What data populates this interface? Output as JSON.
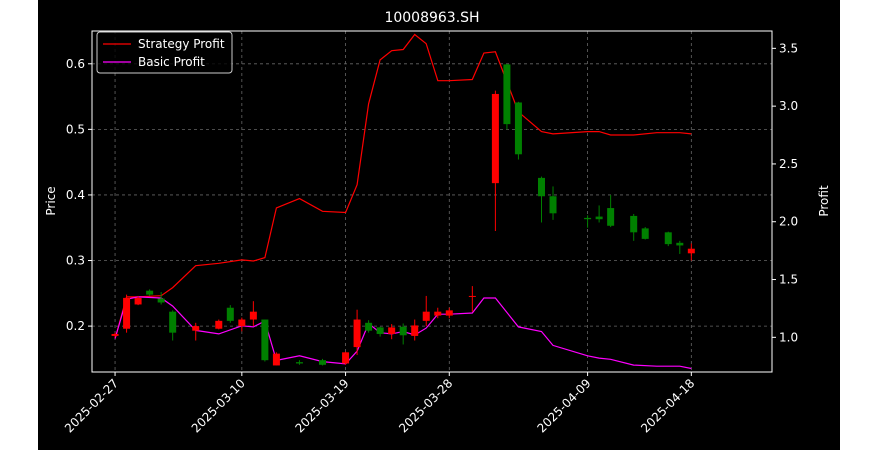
{
  "chart_data": {
    "type": "candlestick",
    "title": "10008963.SH",
    "ylabel_left": "Price",
    "ylabel_right": "Profit",
    "ylim_left": [
      0.13,
      0.65
    ],
    "ylim_right": [
      0.7,
      3.65
    ],
    "xlim": [
      "2025-02-25",
      "2025-04-25"
    ],
    "grid": true,
    "legend_position": "top-left",
    "x_ticks": [
      "2025-02-27",
      "2025-03-10",
      "2025-03-19",
      "2025-03-28",
      "2025-04-09",
      "2025-04-18"
    ],
    "y_ticks_left": [
      "0.2",
      "0.3",
      "0.4",
      "0.5",
      "0.6"
    ],
    "y_ticks_right": [
      "1.0",
      "1.5",
      "2.0",
      "2.5",
      "3.0",
      "3.5"
    ],
    "colors": {
      "background": "#000000",
      "up": "#ff0000",
      "down": "#008000",
      "strategy_line": "#ff0000",
      "basic_line": "#ff00ff",
      "grid": "#666666",
      "text": "#ffffff"
    },
    "candles": [
      {
        "date": "2025-02-27",
        "open": 0.185,
        "close": 0.188,
        "high": 0.19,
        "low": 0.183
      },
      {
        "date": "2025-02-28",
        "open": 0.196,
        "close": 0.243,
        "high": 0.248,
        "low": 0.19
      },
      {
        "date": "2025-03-01",
        "open": 0.233,
        "close": 0.243,
        "high": 0.246,
        "low": 0.232
      },
      {
        "date": "2025-03-02",
        "open": 0.254,
        "close": 0.248,
        "high": 0.256,
        "low": 0.246
      },
      {
        "date": "2025-03-03",
        "open": 0.242,
        "close": 0.236,
        "high": 0.252,
        "low": 0.233
      },
      {
        "date": "2025-03-04",
        "open": 0.222,
        "close": 0.19,
        "high": 0.224,
        "low": 0.178
      },
      {
        "date": "2025-03-06",
        "open": 0.193,
        "close": 0.2,
        "high": 0.205,
        "low": 0.178
      },
      {
        "date": "2025-03-08",
        "open": 0.196,
        "close": 0.208,
        "high": 0.21,
        "low": 0.195
      },
      {
        "date": "2025-03-09",
        "open": 0.228,
        "close": 0.208,
        "high": 0.232,
        "low": 0.205
      },
      {
        "date": "2025-03-10",
        "open": 0.2,
        "close": 0.21,
        "high": 0.213,
        "low": 0.192
      },
      {
        "date": "2025-03-11",
        "open": 0.21,
        "close": 0.222,
        "high": 0.238,
        "low": 0.2
      },
      {
        "date": "2025-03-12",
        "open": 0.21,
        "close": 0.148,
        "high": 0.21,
        "low": 0.146
      },
      {
        "date": "2025-03-13",
        "open": 0.14,
        "close": 0.158,
        "high": 0.16,
        "low": 0.14
      },
      {
        "date": "2025-03-15",
        "open": 0.145,
        "close": 0.143,
        "high": 0.148,
        "low": 0.141
      },
      {
        "date": "2025-03-17",
        "open": 0.148,
        "close": 0.141,
        "high": 0.15,
        "low": 0.14
      },
      {
        "date": "2025-03-19",
        "open": 0.143,
        "close": 0.16,
        "high": 0.161,
        "low": 0.141
      },
      {
        "date": "2025-03-20",
        "open": 0.168,
        "close": 0.21,
        "high": 0.225,
        "low": 0.156
      },
      {
        "date": "2025-03-21",
        "open": 0.205,
        "close": 0.193,
        "high": 0.209,
        "low": 0.19
      },
      {
        "date": "2025-03-22",
        "open": 0.198,
        "close": 0.188,
        "high": 0.199,
        "low": 0.184
      },
      {
        "date": "2025-03-23",
        "open": 0.188,
        "close": 0.198,
        "high": 0.203,
        "low": 0.18
      },
      {
        "date": "2025-03-24",
        "open": 0.199,
        "close": 0.186,
        "high": 0.204,
        "low": 0.172
      },
      {
        "date": "2025-03-25",
        "open": 0.185,
        "close": 0.201,
        "high": 0.21,
        "low": 0.178
      },
      {
        "date": "2025-03-26",
        "open": 0.208,
        "close": 0.222,
        "high": 0.246,
        "low": 0.2
      },
      {
        "date": "2025-03-27",
        "open": 0.216,
        "close": 0.222,
        "high": 0.228,
        "low": 0.212
      },
      {
        "date": "2025-03-28",
        "open": 0.216,
        "close": 0.224,
        "high": 0.228,
        "low": 0.212
      },
      {
        "date": "2025-03-30",
        "open": 0.245,
        "close": 0.246,
        "high": 0.261,
        "low": 0.222
      },
      {
        "date": "2025-04-01",
        "open": 0.418,
        "close": 0.554,
        "high": 0.559,
        "low": 0.345
      },
      {
        "date": "2025-04-02",
        "open": 0.599,
        "close": 0.508,
        "high": 0.6,
        "low": 0.5
      },
      {
        "date": "2025-04-03",
        "open": 0.541,
        "close": 0.462,
        "high": 0.542,
        "low": 0.454
      },
      {
        "date": "2025-04-05",
        "open": 0.426,
        "close": 0.398,
        "high": 0.428,
        "low": 0.358
      },
      {
        "date": "2025-04-06",
        "open": 0.398,
        "close": 0.372,
        "high": 0.413,
        "low": 0.362
      },
      {
        "date": "2025-04-09",
        "open": 0.365,
        "close": 0.363,
        "high": 0.369,
        "low": 0.35
      },
      {
        "date": "2025-04-10",
        "open": 0.367,
        "close": 0.363,
        "high": 0.384,
        "low": 0.358
      },
      {
        "date": "2025-04-11",
        "open": 0.38,
        "close": 0.353,
        "high": 0.4,
        "low": 0.351
      },
      {
        "date": "2025-04-13",
        "open": 0.368,
        "close": 0.343,
        "high": 0.371,
        "low": 0.33
      },
      {
        "date": "2025-04-14",
        "open": 0.349,
        "close": 0.333,
        "high": 0.351,
        "low": 0.332
      },
      {
        "date": "2025-04-16",
        "open": 0.343,
        "close": 0.325,
        "high": 0.344,
        "low": 0.322
      },
      {
        "date": "2025-04-17",
        "open": 0.327,
        "close": 0.323,
        "high": 0.33,
        "low": 0.31
      },
      {
        "date": "2025-04-18",
        "open": 0.311,
        "close": 0.318,
        "high": 0.326,
        "low": 0.3
      }
    ],
    "series": [
      {
        "name": "Strategy Profit",
        "axis": "right",
        "x": [
          "2025-02-27",
          "2025-02-28",
          "2025-03-01",
          "2025-03-03",
          "2025-03-04",
          "2025-03-06",
          "2025-03-08",
          "2025-03-10",
          "2025-03-11",
          "2025-03-12",
          "2025-03-13",
          "2025-03-15",
          "2025-03-17",
          "2025-03-19",
          "2025-03-20",
          "2025-03-21",
          "2025-03-22",
          "2025-03-23",
          "2025-03-24",
          "2025-03-25",
          "2025-03-26",
          "2025-03-27",
          "2025-03-28",
          "2025-03-30",
          "2025-03-31",
          "2025-04-01",
          "2025-04-03",
          "2025-04-05",
          "2025-04-06",
          "2025-04-09",
          "2025-04-10",
          "2025-04-11",
          "2025-04-13",
          "2025-04-15",
          "2025-04-17",
          "2025-04-18"
        ],
        "values": [
          0.99,
          1.35,
          1.35,
          1.36,
          1.43,
          1.62,
          1.64,
          1.67,
          1.66,
          1.69,
          2.12,
          2.2,
          2.09,
          2.08,
          2.32,
          3.02,
          3.4,
          3.48,
          3.49,
          3.62,
          3.54,
          3.22,
          3.22,
          3.23,
          3.46,
          3.47,
          2.95,
          2.78,
          2.76,
          2.78,
          2.78,
          2.75,
          2.75,
          2.77,
          2.77,
          2.76
        ]
      },
      {
        "name": "Basic Profit",
        "axis": "right",
        "x": [
          "2025-02-27",
          "2025-02-28",
          "2025-03-01",
          "2025-03-03",
          "2025-03-04",
          "2025-03-06",
          "2025-03-08",
          "2025-03-10",
          "2025-03-11",
          "2025-03-12",
          "2025-03-13",
          "2025-03-15",
          "2025-03-17",
          "2025-03-19",
          "2025-03-20",
          "2025-03-21",
          "2025-03-22",
          "2025-03-23",
          "2025-03-24",
          "2025-03-25",
          "2025-03-26",
          "2025-03-27",
          "2025-03-28",
          "2025-03-30",
          "2025-03-31",
          "2025-04-01",
          "2025-04-03",
          "2025-04-05",
          "2025-04-06",
          "2025-04-09",
          "2025-04-10",
          "2025-04-11",
          "2025-04-13",
          "2025-04-15",
          "2025-04-17",
          "2025-04-18"
        ],
        "values": [
          0.99,
          1.33,
          1.35,
          1.34,
          1.27,
          1.06,
          1.03,
          1.1,
          1.09,
          1.14,
          0.8,
          0.84,
          0.79,
          0.77,
          0.88,
          1.12,
          1.04,
          1.03,
          1.05,
          1.02,
          1.08,
          1.2,
          1.2,
          1.21,
          1.34,
          1.34,
          1.09,
          1.05,
          0.93,
          0.84,
          0.82,
          0.81,
          0.76,
          0.75,
          0.75,
          0.73
        ]
      }
    ]
  }
}
